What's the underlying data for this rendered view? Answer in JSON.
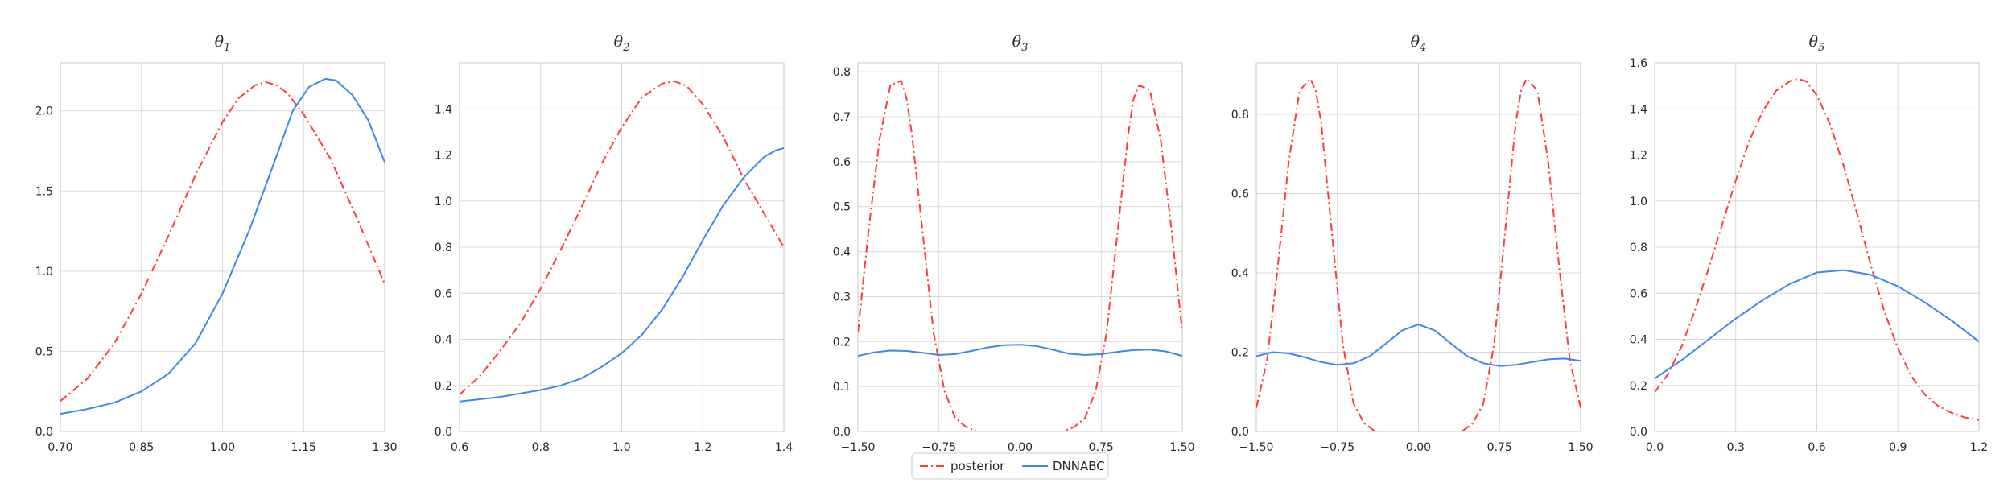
{
  "colors": {
    "posterior": "#ff3b3b",
    "dnnabc": "#3a88f0",
    "grid": "#d9d9d9",
    "axis": "#c8c8c8"
  },
  "legend": {
    "placement": "bottom-center",
    "entries": [
      {
        "label": "posterior",
        "style": "dash-dot"
      },
      {
        "label": "DNNABC",
        "style": "solid"
      }
    ]
  },
  "chart_data": [
    {
      "type": "line",
      "grid": true,
      "title": {
        "base": "θ",
        "sub": "1"
      },
      "xlim": [
        0.7,
        1.3
      ],
      "ylim": [
        0,
        2.3
      ],
      "xticks": [
        0.7,
        0.85,
        1.0,
        1.15,
        1.3
      ],
      "xtick_labels": [
        "0.70",
        "0.85",
        "1.00",
        "1.15",
        "1.30"
      ],
      "yticks": [
        0,
        0.5,
        1.0,
        1.5,
        2.0
      ],
      "ytick_labels": [
        "0.0",
        "0.5",
        "1.0",
        "1.5",
        "2.0"
      ],
      "series": [
        {
          "name": "posterior",
          "style": "dash-dot",
          "x": [
            0.7,
            0.75,
            0.8,
            0.85,
            0.9,
            0.95,
            1.0,
            1.03,
            1.06,
            1.08,
            1.1,
            1.12,
            1.15,
            1.2,
            1.25,
            1.3
          ],
          "y": [
            0.19,
            0.33,
            0.55,
            0.86,
            1.22,
            1.6,
            1.93,
            2.08,
            2.16,
            2.18,
            2.16,
            2.11,
            1.98,
            1.7,
            1.32,
            0.92
          ]
        },
        {
          "name": "DNNABC",
          "style": "solid",
          "x": [
            0.7,
            0.75,
            0.8,
            0.85,
            0.9,
            0.95,
            1.0,
            1.05,
            1.1,
            1.13,
            1.16,
            1.19,
            1.21,
            1.24,
            1.27,
            1.3
          ],
          "y": [
            0.11,
            0.14,
            0.18,
            0.25,
            0.36,
            0.55,
            0.86,
            1.26,
            1.72,
            2.0,
            2.15,
            2.2,
            2.19,
            2.1,
            1.94,
            1.68
          ]
        }
      ]
    },
    {
      "type": "line",
      "grid": true,
      "title": {
        "base": "θ",
        "sub": "2"
      },
      "xlim": [
        0.6,
        1.4
      ],
      "ylim": [
        0,
        1.6
      ],
      "xticks": [
        0.6,
        0.8,
        1.0,
        1.2,
        1.4
      ],
      "xtick_labels": [
        "0.6",
        "0.8",
        "1.0",
        "1.2",
        "1.4"
      ],
      "yticks": [
        0,
        0.2,
        0.4,
        0.6,
        0.8,
        1.0,
        1.2,
        1.4
      ],
      "ytick_labels": [
        "0.0",
        "0.2",
        "0.4",
        "0.6",
        "0.8",
        "1.0",
        "1.2",
        "1.4"
      ],
      "series": [
        {
          "name": "posterior",
          "style": "dash-dot",
          "x": [
            0.6,
            0.65,
            0.7,
            0.75,
            0.8,
            0.85,
            0.9,
            0.95,
            1.0,
            1.05,
            1.1,
            1.13,
            1.16,
            1.2,
            1.25,
            1.3,
            1.35,
            1.4
          ],
          "y": [
            0.16,
            0.24,
            0.35,
            0.47,
            0.62,
            0.79,
            0.97,
            1.16,
            1.32,
            1.45,
            1.51,
            1.52,
            1.5,
            1.42,
            1.28,
            1.1,
            0.95,
            0.8
          ]
        },
        {
          "name": "DNNABC",
          "style": "solid",
          "x": [
            0.6,
            0.7,
            0.8,
            0.85,
            0.9,
            0.95,
            1.0,
            1.05,
            1.1,
            1.15,
            1.2,
            1.25,
            1.3,
            1.35,
            1.38,
            1.4
          ],
          "y": [
            0.13,
            0.15,
            0.18,
            0.2,
            0.23,
            0.28,
            0.34,
            0.42,
            0.53,
            0.67,
            0.83,
            0.98,
            1.1,
            1.19,
            1.22,
            1.23
          ]
        }
      ]
    },
    {
      "type": "line",
      "grid": true,
      "title": {
        "base": "θ",
        "sub": "3"
      },
      "xlim": [
        -1.5,
        1.5
      ],
      "ylim": [
        0,
        0.82
      ],
      "xticks": [
        -1.5,
        -0.75,
        0.0,
        0.75,
        1.5
      ],
      "xtick_labels": [
        "−1.50",
        "−0.75",
        "0.00",
        "0.75",
        "1.50"
      ],
      "yticks": [
        0,
        0.1,
        0.2,
        0.3,
        0.4,
        0.5,
        0.6,
        0.7,
        0.8
      ],
      "ytick_labels": [
        "0.0",
        "0.1",
        "0.2",
        "0.3",
        "0.4",
        "0.5",
        "0.6",
        "0.7",
        "0.8"
      ],
      "series": [
        {
          "name": "posterior",
          "style": "dash-dot",
          "x": [
            -1.5,
            -1.4,
            -1.3,
            -1.2,
            -1.1,
            -1.05,
            -1.0,
            -0.9,
            -0.8,
            -0.7,
            -0.6,
            -0.5,
            -0.4,
            -0.2,
            0.0,
            0.2,
            0.4,
            0.5,
            0.6,
            0.7,
            0.8,
            0.9,
            1.0,
            1.05,
            1.1,
            1.2,
            1.3,
            1.4,
            1.5
          ],
          "y": [
            0.22,
            0.45,
            0.65,
            0.77,
            0.78,
            0.74,
            0.66,
            0.44,
            0.22,
            0.09,
            0.03,
            0.01,
            0.0,
            0.0,
            0.0,
            0.0,
            0.0,
            0.01,
            0.03,
            0.09,
            0.22,
            0.44,
            0.66,
            0.74,
            0.77,
            0.76,
            0.65,
            0.45,
            0.22
          ]
        },
        {
          "name": "DNNABC",
          "style": "solid",
          "x": [
            -1.5,
            -1.35,
            -1.2,
            -1.05,
            -0.9,
            -0.75,
            -0.6,
            -0.45,
            -0.3,
            -0.15,
            0.0,
            0.15,
            0.3,
            0.45,
            0.6,
            0.75,
            0.9,
            1.05,
            1.2,
            1.35,
            1.5
          ],
          "y": [
            0.168,
            0.176,
            0.18,
            0.179,
            0.175,
            0.17,
            0.172,
            0.179,
            0.187,
            0.192,
            0.193,
            0.19,
            0.182,
            0.173,
            0.17,
            0.172,
            0.177,
            0.181,
            0.182,
            0.178,
            0.168
          ]
        }
      ]
    },
    {
      "type": "line",
      "grid": true,
      "title": {
        "base": "θ",
        "sub": "4"
      },
      "xlim": [
        -1.5,
        1.5
      ],
      "ylim": [
        0,
        0.93
      ],
      "xticks": [
        -1.5,
        -0.75,
        0.0,
        0.75,
        1.5
      ],
      "xtick_labels": [
        "−1.50",
        "−0.75",
        "0.00",
        "0.75",
        "1.50"
      ],
      "yticks": [
        0,
        0.2,
        0.4,
        0.6,
        0.8
      ],
      "ytick_labels": [
        "0.0",
        "0.2",
        "0.4",
        "0.6",
        "0.8"
      ],
      "series": [
        {
          "name": "posterior",
          "style": "dash-dot",
          "x": [
            -1.5,
            -1.4,
            -1.3,
            -1.2,
            -1.1,
            -1.0,
            -0.95,
            -0.9,
            -0.8,
            -0.7,
            -0.6,
            -0.5,
            -0.4,
            -0.2,
            0.0,
            0.2,
            0.4,
            0.5,
            0.6,
            0.7,
            0.8,
            0.9,
            0.95,
            1.0,
            1.1,
            1.2,
            1.3,
            1.4,
            1.5
          ],
          "y": [
            0.06,
            0.18,
            0.42,
            0.68,
            0.86,
            0.89,
            0.86,
            0.78,
            0.5,
            0.22,
            0.07,
            0.02,
            0.0,
            0.0,
            0.0,
            0.0,
            0.0,
            0.02,
            0.07,
            0.22,
            0.5,
            0.78,
            0.86,
            0.89,
            0.86,
            0.68,
            0.42,
            0.18,
            0.06
          ]
        },
        {
          "name": "DNNABC",
          "style": "solid",
          "x": [
            -1.5,
            -1.35,
            -1.2,
            -1.05,
            -0.9,
            -0.75,
            -0.6,
            -0.45,
            -0.3,
            -0.15,
            0.0,
            0.15,
            0.3,
            0.45,
            0.6,
            0.75,
            0.9,
            1.05,
            1.2,
            1.35,
            1.5
          ],
          "y": [
            0.19,
            0.2,
            0.197,
            0.187,
            0.175,
            0.168,
            0.172,
            0.19,
            0.222,
            0.255,
            0.27,
            0.255,
            0.222,
            0.19,
            0.172,
            0.165,
            0.168,
            0.175,
            0.182,
            0.184,
            0.178
          ]
        }
      ]
    },
    {
      "type": "line",
      "grid": true,
      "title": {
        "base": "θ",
        "sub": "5"
      },
      "xlim": [
        0.0,
        1.2
      ],
      "ylim": [
        0,
        1.6
      ],
      "xticks": [
        0.0,
        0.3,
        0.6,
        0.9,
        1.2
      ],
      "xtick_labels": [
        "0.0",
        "0.3",
        "0.6",
        "0.9",
        "1.2"
      ],
      "yticks": [
        0,
        0.2,
        0.4,
        0.6,
        0.8,
        1.0,
        1.2,
        1.4,
        1.6
      ],
      "ytick_labels": [
        "0.0",
        "0.2",
        "0.4",
        "0.6",
        "0.8",
        "1.0",
        "1.2",
        "1.4",
        "1.6"
      ],
      "series": [
        {
          "name": "posterior",
          "style": "dash-dot",
          "x": [
            0.0,
            0.05,
            0.1,
            0.15,
            0.2,
            0.25,
            0.3,
            0.35,
            0.4,
            0.45,
            0.5,
            0.53,
            0.56,
            0.6,
            0.65,
            0.7,
            0.75,
            0.8,
            0.85,
            0.9,
            0.95,
            1.0,
            1.05,
            1.1,
            1.15,
            1.2
          ],
          "y": [
            0.17,
            0.25,
            0.37,
            0.53,
            0.71,
            0.9,
            1.09,
            1.26,
            1.39,
            1.48,
            1.52,
            1.53,
            1.52,
            1.46,
            1.33,
            1.15,
            0.94,
            0.72,
            0.52,
            0.36,
            0.24,
            0.16,
            0.11,
            0.08,
            0.06,
            0.05
          ]
        },
        {
          "name": "DNNABC",
          "style": "solid",
          "x": [
            0.0,
            0.1,
            0.2,
            0.3,
            0.4,
            0.5,
            0.6,
            0.7,
            0.8,
            0.9,
            1.0,
            1.1,
            1.2
          ],
          "y": [
            0.23,
            0.31,
            0.4,
            0.49,
            0.57,
            0.64,
            0.69,
            0.7,
            0.68,
            0.63,
            0.56,
            0.48,
            0.39
          ]
        }
      ]
    }
  ]
}
